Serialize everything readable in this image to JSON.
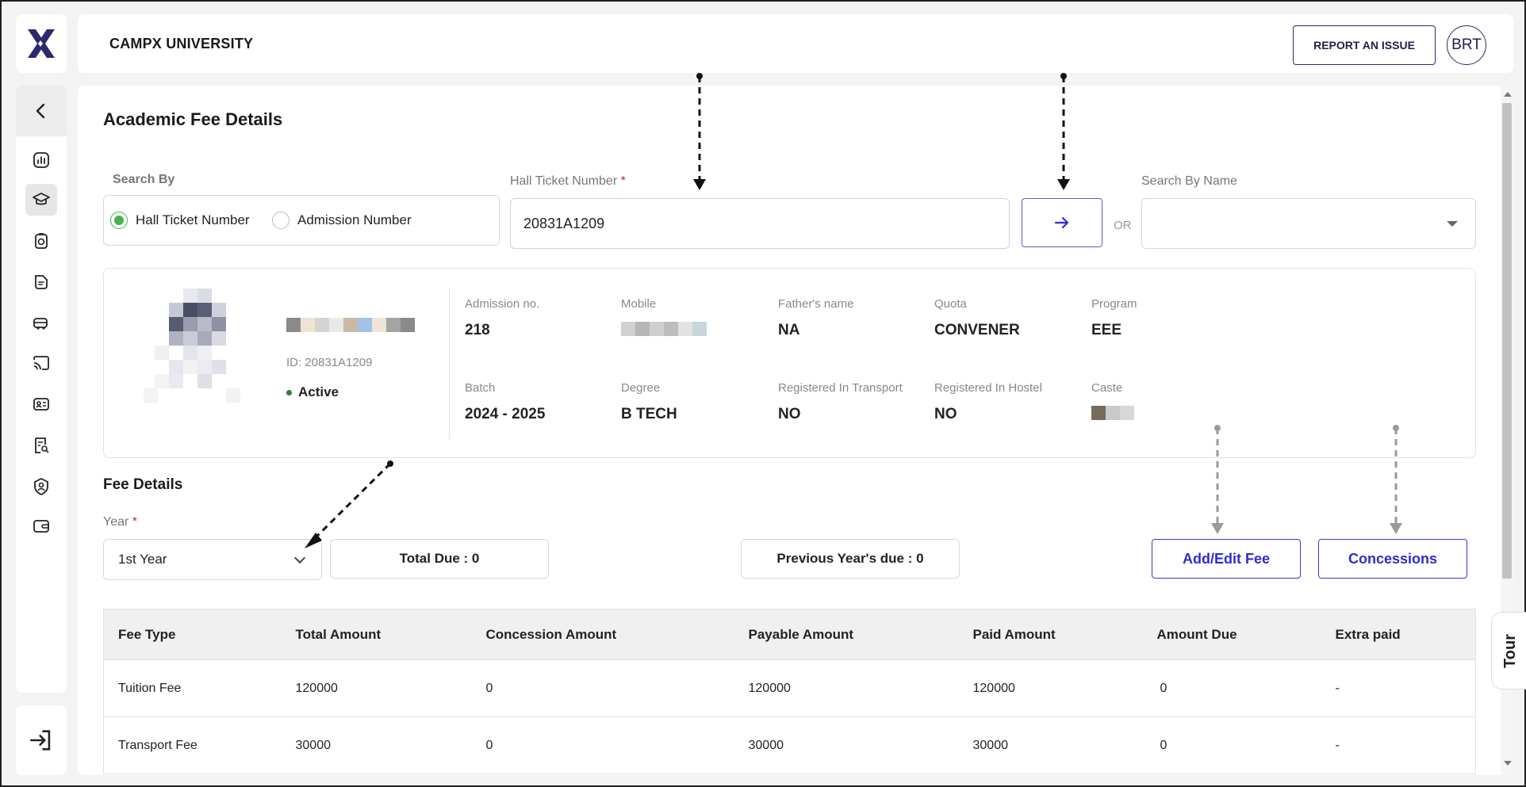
{
  "header": {
    "brand": "CAMPX UNIVERSITY",
    "report_label": "REPORT AN ISSUE",
    "avatar_initials": "BRT"
  },
  "page": {
    "title": "Academic Fee Details"
  },
  "search": {
    "search_by_label": "Search By",
    "option_hall_ticket": "Hall Ticket Number",
    "option_admission": "Admission Number",
    "selected": "Hall Ticket Number",
    "hall_ticket_label": "Hall Ticket Number",
    "required_mark": "*",
    "hall_ticket_value": "20831A1209",
    "or_label": "OR",
    "search_by_name_label": "Search By Name",
    "search_by_name_value": ""
  },
  "student": {
    "id_text": "ID: 20831A1209",
    "status": "Active",
    "fields": [
      {
        "label": "Admission no.",
        "value": "218"
      },
      {
        "label": "Mobile",
        "value": ""
      },
      {
        "label": "Father's name",
        "value": "NA"
      },
      {
        "label": "Quota",
        "value": "CONVENER"
      },
      {
        "label": "Program",
        "value": "EEE"
      },
      {
        "label": "Batch",
        "value": "2024 - 2025"
      },
      {
        "label": "Degree",
        "value": "B TECH"
      },
      {
        "label": "Registered In Transport",
        "value": "NO"
      },
      {
        "label": "Registered In Hostel",
        "value": "NO"
      },
      {
        "label": "Caste",
        "value": ""
      }
    ]
  },
  "fee": {
    "section_title": "Fee Details",
    "year_label": "Year",
    "year_value": "1st Year",
    "total_due": "Total Due : 0",
    "previous_due": "Previous Year's due : 0",
    "add_edit_label": "Add/Edit Fee",
    "concessions_label": "Concessions"
  },
  "table": {
    "columns": [
      "Fee Type",
      "Total Amount",
      "Concession Amount",
      "Payable Amount",
      "Paid Amount",
      "Amount Due",
      "Extra paid"
    ],
    "rows": [
      [
        "Tuition Fee",
        "120000",
        "0",
        "120000",
        "120000",
        "0",
        "-"
      ],
      [
        "Transport Fee",
        "30000",
        "0",
        "30000",
        "30000",
        "0",
        "-"
      ]
    ]
  },
  "tour_label": "Tour",
  "colors": {
    "accent": "#2c2cd0",
    "brand_dark": "#2a2a6e",
    "active_green": "#4caf50",
    "required_red": "#c62828"
  }
}
